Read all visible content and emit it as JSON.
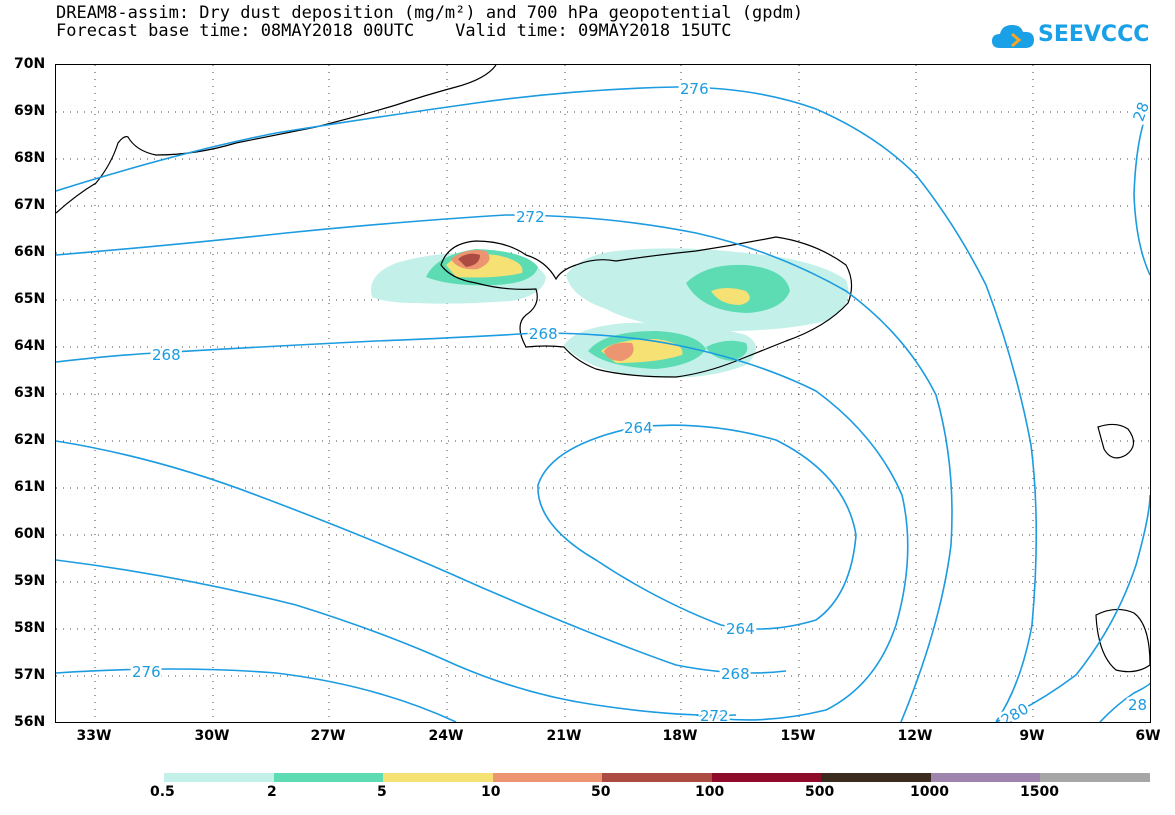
{
  "header": {
    "title_line1": "DREAM8-assim: Dry dust deposition (mg/m²) and 700 hPa geopotential (gpdm)",
    "title_line2": "Forecast base time: 08MAY2018 00UTC    Valid time: 09MAY2018 15UTC"
  },
  "logo": {
    "text": "SEEVCCC",
    "color": "#1aa0e6"
  },
  "axes": {
    "lat_labels": [
      "70N",
      "69N",
      "68N",
      "67N",
      "66N",
      "65N",
      "64N",
      "63N",
      "62N",
      "61N",
      "60N",
      "59N",
      "58N",
      "57N",
      "56N"
    ],
    "lon_labels": [
      "33W",
      "30W",
      "27W",
      "24W",
      "21W",
      "18W",
      "15W",
      "12W",
      "9W",
      "6W"
    ]
  },
  "contours": {
    "color": "#1b9be0",
    "labels": [
      "276",
      "272",
      "268",
      "268",
      "264",
      "264",
      "268",
      "272",
      "276",
      "280",
      "28",
      "28"
    ]
  },
  "legend": {
    "labels": [
      "0.5",
      "2",
      "5",
      "10",
      "50",
      "100",
      "500",
      "1000",
      "1500"
    ],
    "colors": [
      "#c3f1ea",
      "#5ddcb3",
      "#f6e174",
      "#ec9570",
      "#ab4b42",
      "#8e0c2a",
      "#3b2b1e",
      "#9e83ad",
      "#a6a6a6"
    ]
  }
}
